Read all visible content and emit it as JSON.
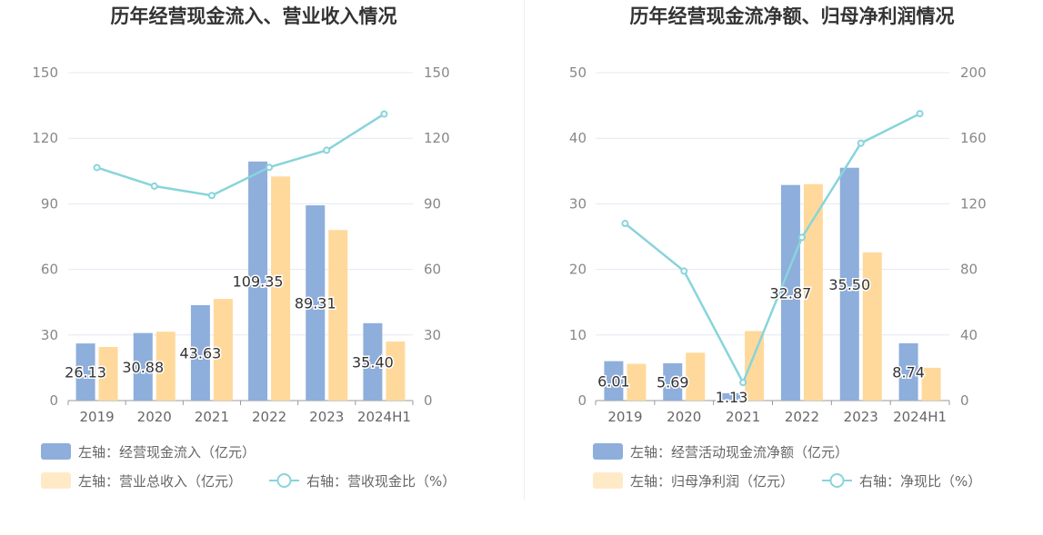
{
  "colors": {
    "cash_inflow": "#8eaedc",
    "revenue": "#ffd99b",
    "ratio_line": "#88d4db",
    "grid": "#e4e8f2",
    "axis": "#999999",
    "text": "#333333"
  },
  "chart_data": [
    {
      "type": "bar",
      "title": "历年经营现金流入、营业收入情况",
      "categories": [
        "2019",
        "2020",
        "2021",
        "2022",
        "2023",
        "2024H1"
      ],
      "ylim_left": [
        0,
        150
      ],
      "yticks_left": [
        "0",
        "30",
        "60",
        "90",
        "120",
        "150"
      ],
      "ylim_right": [
        0,
        150
      ],
      "yticks_right": [
        "0",
        "30",
        "60",
        "90",
        "120",
        "150"
      ],
      "grid": true,
      "legend_position": "bottom",
      "series": [
        {
          "name": "左轴：经营现金流入（亿元）",
          "axis": "left",
          "type": "bar",
          "values": [
            26.13,
            30.88,
            43.63,
            109.35,
            89.31,
            35.4
          ],
          "labels": [
            "26.13",
            "30.88",
            "43.63",
            "109.35",
            "89.31",
            "35.40"
          ]
        },
        {
          "name": "左轴：营业总收入（亿元）",
          "axis": "left",
          "type": "bar",
          "values": [
            24.5,
            31.5,
            46.5,
            102.5,
            78.0,
            27.0
          ]
        },
        {
          "name": "右轴：营收现金比（%）",
          "axis": "right",
          "type": "line",
          "values": [
            106.6,
            98.1,
            93.8,
            106.7,
            114.5,
            131.1
          ]
        }
      ]
    },
    {
      "type": "bar",
      "title": "历年经营现金流净额、归母净利润情况",
      "categories": [
        "2019",
        "2020",
        "2021",
        "2022",
        "2023",
        "2024H1"
      ],
      "ylim_left": [
        0,
        50
      ],
      "yticks_left": [
        "0",
        "10",
        "20",
        "30",
        "40",
        "50"
      ],
      "ylim_right": [
        0,
        200
      ],
      "yticks_right": [
        "0",
        "40",
        "80",
        "120",
        "160",
        "200"
      ],
      "grid": true,
      "legend_position": "bottom",
      "series": [
        {
          "name": "左轴：经营活动现金流净额（亿元）",
          "axis": "left",
          "type": "bar",
          "values": [
            6.01,
            5.69,
            1.13,
            32.87,
            35.5,
            8.74
          ],
          "labels": [
            "6.01",
            "5.69",
            "1.13",
            "32.87",
            "35.50",
            "8.74"
          ]
        },
        {
          "name": "左轴：归母净利润（亿元）",
          "axis": "left",
          "type": "bar",
          "values": [
            5.6,
            7.3,
            10.6,
            33.0,
            22.6,
            5.0
          ]
        },
        {
          "name": "右轴：净现比（%）",
          "axis": "right",
          "type": "line",
          "values": [
            108.0,
            79.0,
            11.0,
            99.5,
            157.0,
            175.0
          ]
        }
      ]
    }
  ]
}
